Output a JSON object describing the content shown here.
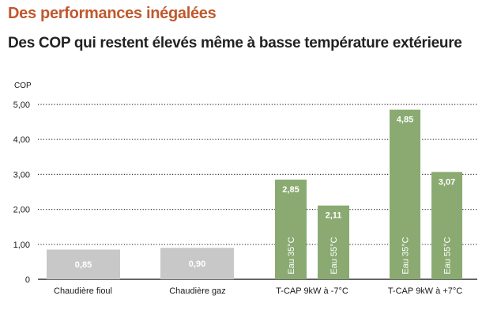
{
  "header": {
    "title": "Des performances inégalées",
    "subtitle": "Des COP qui restent élevés même à basse température extérieure"
  },
  "colors": {
    "title": "#c0582e",
    "bar_gray": "#c8c8c8",
    "bar_green": "#8aaa72",
    "grid": "#333333",
    "text": "#1a1a1a",
    "label_on_bar": "#ffffff"
  },
  "chart_data": {
    "type": "bar",
    "title": "",
    "ylabel": "COP",
    "xlabel": "",
    "ylim": [
      0,
      5
    ],
    "yticks": [
      "0",
      "1,00",
      "2,00",
      "3,00",
      "4,00",
      "5,00"
    ],
    "grid": true,
    "categories": [
      "Chaudière fioul",
      "Chaudière gaz",
      "T-CAP 9kW à -7°C",
      "T-CAP 9kW à +7°C"
    ],
    "bars": [
      {
        "category": "Chaudière fioul",
        "value": 0.85,
        "label": "0,85",
        "series_label": "",
        "color": "gray"
      },
      {
        "category": "Chaudière gaz",
        "value": 0.9,
        "label": "0,90",
        "series_label": "",
        "color": "gray"
      },
      {
        "category": "T-CAP 9kW à -7°C",
        "value": 2.85,
        "label": "2,85",
        "series_label": "Eau 35°C",
        "color": "green"
      },
      {
        "category": "T-CAP 9kW à -7°C",
        "value": 2.11,
        "label": "2,11",
        "series_label": "Eau 55°C",
        "color": "green"
      },
      {
        "category": "T-CAP 9kW à +7°C",
        "value": 4.85,
        "label": "4,85",
        "series_label": "Eau 35°C",
        "color": "green"
      },
      {
        "category": "T-CAP 9kW à +7°C",
        "value": 3.07,
        "label": "3,07",
        "series_label": "Eau 55°C",
        "color": "green"
      }
    ]
  }
}
